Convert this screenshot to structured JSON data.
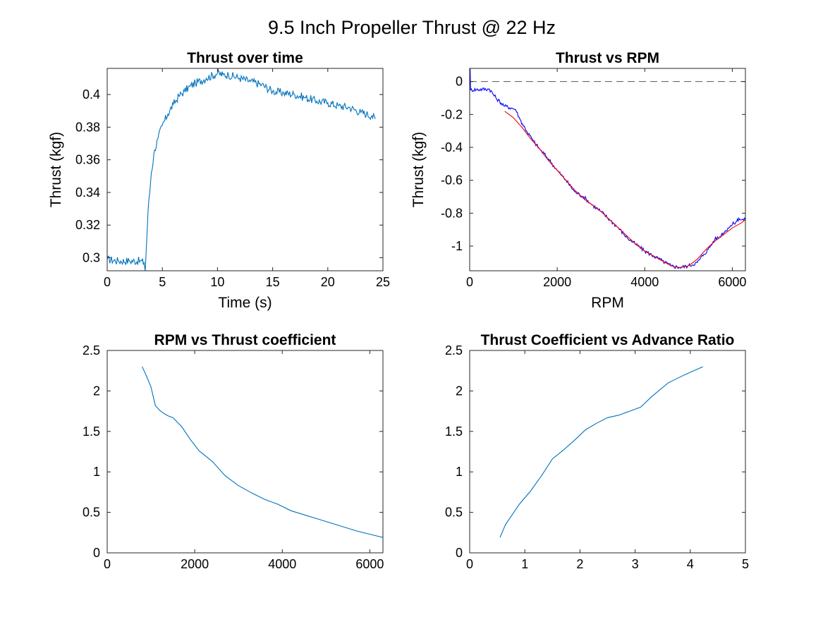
{
  "figure": {
    "title": "9.5 Inch Propeller Thrust @ 22 Hz"
  },
  "chart_data": [
    {
      "type": "line",
      "title": "Thrust over time",
      "xlabel": "Time (s)",
      "ylabel": "Thrust (kgf)",
      "xlim": [
        0,
        25
      ],
      "ylim": [
        0.292,
        0.416
      ],
      "xticks": [
        0,
        5,
        10,
        15,
        20,
        25
      ],
      "yticks": [
        0.3,
        0.32,
        0.34,
        0.36,
        0.38,
        0.4
      ],
      "ytick_labels": [
        "0.3",
        "0.32",
        "0.34",
        "0.36",
        "0.38",
        "0.4"
      ],
      "grid": false,
      "noise": 0.0025,
      "series": [
        {
          "color": "#0072BD",
          "x": [
            0,
            1,
            2,
            3,
            3.35,
            3.45,
            3.7,
            4.0,
            4.3,
            4.6,
            5.0,
            5.5,
            6.0,
            6.5,
            7.0,
            7.5,
            8.0,
            9.0,
            10.0,
            10.5,
            11.0,
            12.0,
            13.0,
            14.0,
            15.0,
            16.0,
            17.0,
            18.0,
            19.0,
            20.0,
            21.0,
            22.0,
            23.0,
            23.5,
            24.0,
            24.3
          ],
          "y": [
            0.299,
            0.298,
            0.298,
            0.298,
            0.297,
            0.292,
            0.328,
            0.352,
            0.366,
            0.373,
            0.381,
            0.388,
            0.394,
            0.399,
            0.402,
            0.405,
            0.407,
            0.41,
            0.413,
            0.412,
            0.412,
            0.41,
            0.408,
            0.406,
            0.402,
            0.401,
            0.4,
            0.398,
            0.396,
            0.395,
            0.393,
            0.392,
            0.389,
            0.388,
            0.387,
            0.385
          ]
        }
      ]
    },
    {
      "type": "line",
      "title": "Thrust vs RPM",
      "xlabel": "RPM",
      "ylabel": "Thrust (kgf)",
      "xlim": [
        0,
        6300
      ],
      "ylim": [
        -1.15,
        0.08
      ],
      "xticks": [
        0,
        2000,
        4000,
        6000
      ],
      "yticks": [
        0,
        -0.2,
        -0.4,
        -0.6,
        -0.8,
        -1
      ],
      "ytick_labels": [
        "0",
        "-0.2",
        "-0.4",
        "-0.6",
        "-0.8",
        "-1"
      ],
      "grid": false,
      "zero_reference_line": true,
      "noise": 0.012,
      "series": [
        {
          "color": "#0000FF",
          "x": [
            0,
            10,
            20,
            450,
            600,
            800,
            950,
            1050,
            1150,
            1300,
            1450,
            1600,
            1800,
            2000,
            2200,
            2400,
            2600,
            2800,
            3000,
            3200,
            3400,
            3600,
            3800,
            4000,
            4200,
            4400,
            4600,
            4800,
            5000,
            5200,
            5350,
            5450,
            5550,
            5600,
            5650,
            5700,
            5750,
            5800,
            5900,
            6000,
            6100,
            6150,
            6200,
            6300
          ],
          "y": [
            -0.02,
            0.08,
            -0.05,
            -0.045,
            -0.1,
            -0.15,
            -0.16,
            -0.17,
            -0.23,
            -0.3,
            -0.36,
            -0.41,
            -0.47,
            -0.54,
            -0.6,
            -0.67,
            -0.7,
            -0.75,
            -0.79,
            -0.84,
            -0.89,
            -0.95,
            -0.99,
            -1.03,
            -1.06,
            -1.09,
            -1.12,
            -1.13,
            -1.12,
            -1.1,
            -1.05,
            -1.02,
            -0.98,
            -0.96,
            -0.95,
            -0.95,
            -0.93,
            -0.92,
            -0.89,
            -0.87,
            -0.85,
            -0.83,
            -0.84,
            -0.84
          ]
        },
        {
          "color": "#FF0000",
          "x": [
            800,
            1000,
            1200,
            1400,
            1600,
            1800,
            2000,
            2200,
            2400,
            2600,
            2800,
            3000,
            3200,
            3400,
            3600,
            3800,
            4000,
            4200,
            4400,
            4600,
            4800,
            5000,
            5200,
            5400,
            5600,
            5800,
            6000,
            6200,
            6300
          ],
          "y": [
            -0.18,
            -0.22,
            -0.28,
            -0.35,
            -0.41,
            -0.48,
            -0.54,
            -0.6,
            -0.66,
            -0.71,
            -0.75,
            -0.79,
            -0.84,
            -0.89,
            -0.94,
            -0.99,
            -1.03,
            -1.06,
            -1.09,
            -1.12,
            -1.13,
            -1.12,
            -1.08,
            -1.02,
            -0.97,
            -0.93,
            -0.89,
            -0.86,
            -0.84
          ]
        }
      ]
    },
    {
      "type": "line",
      "title": "RPM vs Thrust coefficient",
      "xlabel": "",
      "ylabel": "",
      "xlim": [
        0,
        6300
      ],
      "ylim": [
        0,
        2.5
      ],
      "xticks": [
        0,
        2000,
        4000,
        6000
      ],
      "yticks": [
        0,
        0.5,
        1,
        1.5,
        2,
        2.5
      ],
      "ytick_labels": [
        "0",
        "0.5",
        "1",
        "1.5",
        "2",
        "2.5"
      ],
      "grid": false,
      "noise": 0,
      "series": [
        {
          "color": "#0072BD",
          "x": [
            800,
            900,
            1000,
            1100,
            1200,
            1300,
            1400,
            1500,
            1700,
            1900,
            2100,
            2400,
            2700,
            3000,
            3300,
            3600,
            3900,
            4200,
            4500,
            4800,
            5100,
            5400,
            5700,
            6000,
            6300
          ],
          "y": [
            2.3,
            2.18,
            2.05,
            1.82,
            1.76,
            1.72,
            1.69,
            1.67,
            1.56,
            1.4,
            1.26,
            1.13,
            0.95,
            0.83,
            0.74,
            0.66,
            0.6,
            0.52,
            0.47,
            0.42,
            0.37,
            0.32,
            0.27,
            0.23,
            0.19
          ]
        }
      ]
    },
    {
      "type": "line",
      "title": "Thrust Coefficient vs Advance Ratio",
      "xlabel": "",
      "ylabel": "",
      "xlim": [
        0,
        5
      ],
      "ylim": [
        0,
        2.5
      ],
      "xticks": [
        0,
        1,
        2,
        3,
        4,
        5
      ],
      "yticks": [
        0,
        0.5,
        1,
        1.5,
        2,
        2.5
      ],
      "ytick_labels": [
        "0",
        "0.5",
        "1",
        "1.5",
        "2",
        "2.5"
      ],
      "grid": false,
      "noise": 0,
      "series": [
        {
          "color": "#0072BD",
          "x": [
            0.55,
            0.65,
            0.75,
            0.9,
            1.1,
            1.3,
            1.5,
            1.7,
            1.9,
            2.1,
            2.3,
            2.5,
            2.7,
            2.9,
            3.1,
            3.3,
            3.6,
            3.9,
            4.23
          ],
          "y": [
            0.19,
            0.35,
            0.45,
            0.6,
            0.76,
            0.95,
            1.16,
            1.27,
            1.39,
            1.52,
            1.6,
            1.67,
            1.7,
            1.75,
            1.8,
            1.93,
            2.1,
            2.2,
            2.3
          ]
        }
      ]
    }
  ]
}
